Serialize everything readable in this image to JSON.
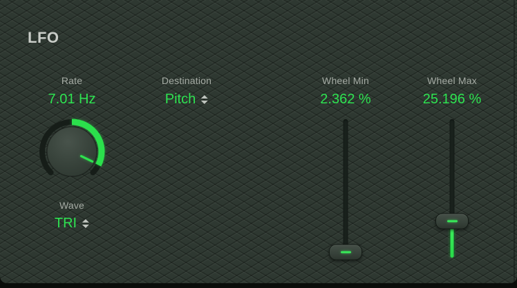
{
  "window": {
    "title": "LFO"
  },
  "colors": {
    "panel_base": "#2e3831",
    "accent_green": "#2ee351",
    "label_gray": "#a6aca5",
    "title_gray": "#c9cdc8"
  },
  "controls": {
    "rate": {
      "label": "Rate",
      "value": "7.01 Hz",
      "knob": {
        "ring_start_deg": -135,
        "ring_end_deg": 135,
        "value_arc_start_deg": 0,
        "value_arc_end_deg": 117,
        "pointer_deg": 116
      }
    },
    "wave": {
      "label": "Wave",
      "value": "TRI"
    },
    "destination": {
      "label": "Destination",
      "value": "Pitch"
    },
    "wheel_min": {
      "label": "Wheel Min",
      "value": "2.362 %",
      "percent": 2.362
    },
    "wheel_max": {
      "label": "Wheel Max",
      "value": "25.196 %",
      "percent": 25.196
    }
  }
}
